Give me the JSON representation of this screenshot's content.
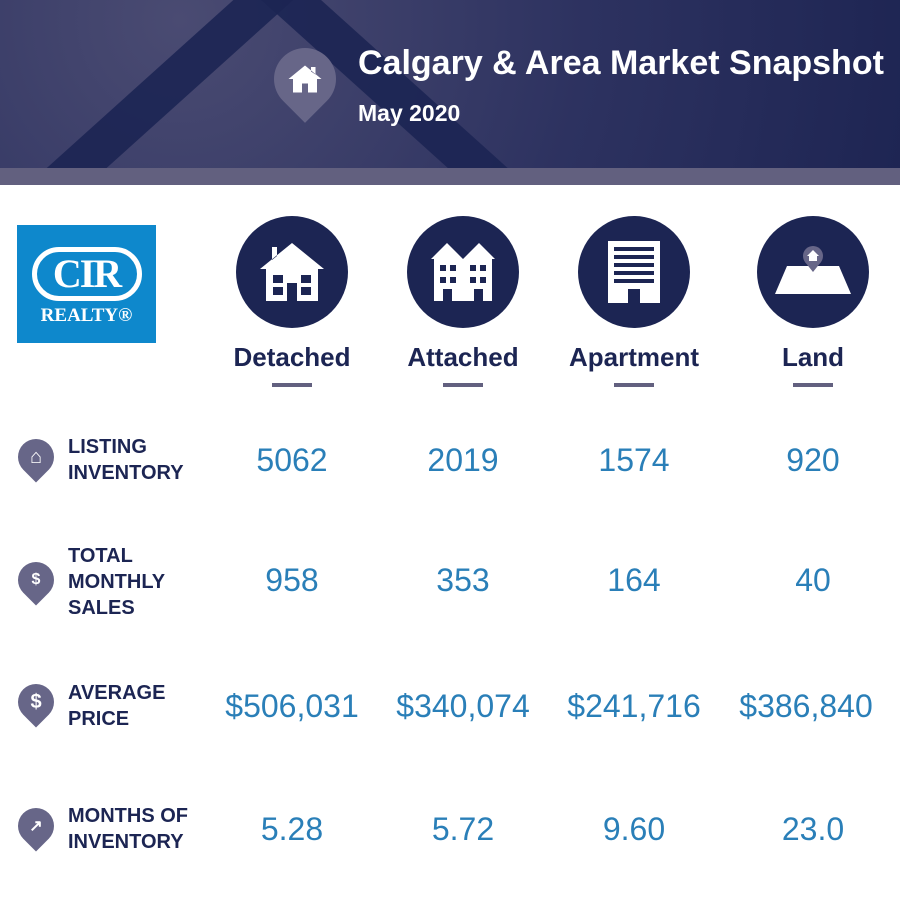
{
  "header": {
    "title": "Calgary & Area Market Snapshot",
    "subtitle": "May 2020",
    "icon": "home-icon"
  },
  "logo": {
    "text": "CIR",
    "subtext": "REALTY®"
  },
  "colors": {
    "navy": "#1c2553",
    "accent_gray": "#62607f",
    "value_blue": "#2a7fb8",
    "logo_blue": "#0e88cc"
  },
  "columns": [
    {
      "label": "Detached",
      "icon": "detached-house-icon"
    },
    {
      "label": "Attached",
      "icon": "attached-house-icon"
    },
    {
      "label": "Apartment",
      "icon": "apartment-building-icon"
    },
    {
      "label": "Land",
      "icon": "land-plot-icon"
    }
  ],
  "rows": [
    {
      "label_lines": [
        "LISTING",
        "INVENTORY"
      ],
      "icon": "home-icon",
      "values": [
        "5062",
        "2019",
        "1574",
        "920"
      ]
    },
    {
      "label_lines": [
        "TOTAL",
        "MONTHLY",
        "SALES"
      ],
      "icon": "money-bag-icon",
      "values": [
        "958",
        "353",
        "164",
        "40"
      ]
    },
    {
      "label_lines": [
        "AVERAGE",
        "PRICE"
      ],
      "icon": "dollar-icon",
      "values": [
        "$506,031",
        "$340,074",
        "$241,716",
        "$386,840"
      ]
    },
    {
      "label_lines": [
        "MONTHS OF",
        "INVENTORY"
      ],
      "icon": "trend-up-icon",
      "values": [
        "5.28",
        "5.72",
        "9.60",
        "23.0"
      ]
    }
  ]
}
